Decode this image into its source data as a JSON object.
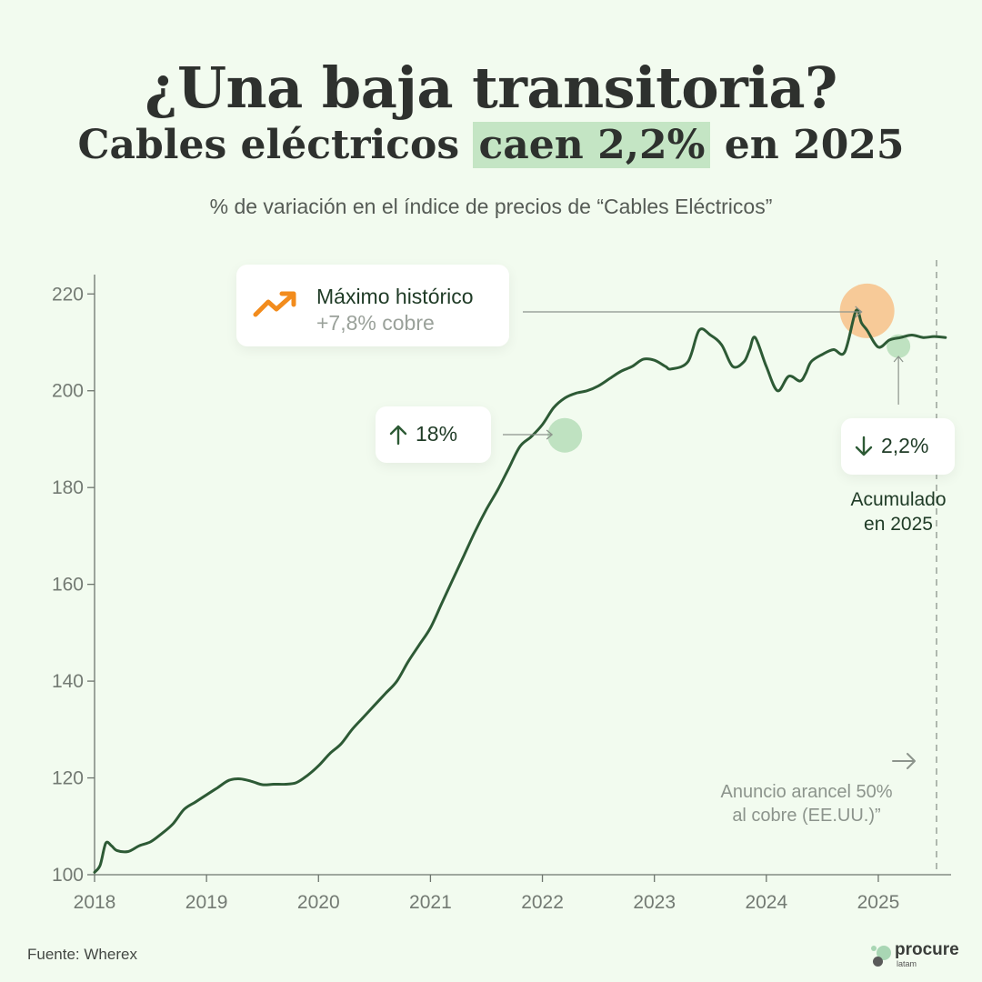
{
  "header": {
    "title": "¿Una baja transitoria?",
    "subtitle_pre": "Cables eléctricos ",
    "subtitle_highlight": "caen 2,2%",
    "subtitle_post": " en 2025",
    "description": "% de variación en el índice de precios de “Cables Eléctricos”"
  },
  "annotations": {
    "max_label": "Máximo histórico",
    "max_sub": "+7,8% cobre",
    "up_label": "18%",
    "down_label": "2,2%",
    "acumulado_line1": "Acumulado",
    "acumulado_line2": "en 2025",
    "arancel_line1": "Anuncio arancel 50%",
    "arancel_line2": "al cobre (EE.UU.)”"
  },
  "footer": {
    "source": "Fuente: Wherex",
    "logo_word": "procure",
    "logo_small": "latam"
  },
  "colors": {
    "line": "#2d5a35",
    "background": "#f2fbef",
    "highlight": "#c4e5c4",
    "max_marker": "#f7c48e",
    "green_marker": "#b9dfbb",
    "arrow_orange": "#f28c1d"
  },
  "chart_data": {
    "type": "line",
    "xlabel": "",
    "ylabel": "",
    "ylim": [
      100,
      224
    ],
    "xlim": [
      2018.0,
      2025.65
    ],
    "yticks": [
      100,
      120,
      140,
      160,
      180,
      200,
      220
    ],
    "xticks": [
      "2018",
      "2019",
      "2020",
      "2021",
      "2022",
      "2023",
      "2024",
      "2025"
    ],
    "grid": false,
    "series": [
      {
        "x": [
          2018.0,
          2018.05,
          2018.1,
          2018.15,
          2018.2,
          2018.3,
          2018.4,
          2018.5,
          2018.6,
          2018.7,
          2018.8,
          2018.9,
          2019.0,
          2019.1,
          2019.2,
          2019.3,
          2019.4,
          2019.5,
          2019.6,
          2019.7,
          2019.8,
          2019.9,
          2020.0,
          2020.1,
          2020.2,
          2020.3,
          2020.4,
          2020.5,
          2020.6,
          2020.7,
          2020.8,
          2020.9,
          2021.0,
          2021.1,
          2021.2,
          2021.3,
          2021.4,
          2021.5,
          2021.6,
          2021.7,
          2021.8,
          2021.9,
          2022.0,
          2022.1,
          2022.2,
          2022.3,
          2022.4,
          2022.5,
          2022.6,
          2022.7,
          2022.8,
          2022.9,
          2023.0,
          2023.1,
          2023.15,
          2023.3,
          2023.4,
          2023.5,
          2023.6,
          2023.7,
          2023.8,
          2023.85,
          2023.9,
          2024.0,
          2024.1,
          2024.2,
          2024.3,
          2024.35,
          2024.4,
          2024.5,
          2024.6,
          2024.7,
          2024.8,
          2024.85,
          2024.9,
          2025.0,
          2025.1,
          2025.2,
          2025.3,
          2025.4,
          2025.5,
          2025.6
        ],
        "y": [
          100.5,
          102,
          106.5,
          106,
          105,
          104.8,
          106,
          106.8,
          108.5,
          110.5,
          113.5,
          115,
          116.5,
          118,
          119.5,
          119.8,
          119.3,
          118.6,
          118.7,
          118.7,
          119,
          120.5,
          122.5,
          125,
          127,
          130,
          132.5,
          135,
          137.5,
          140,
          144,
          147.5,
          151,
          156,
          161,
          166,
          171,
          175.5,
          179.5,
          184,
          188.5,
          190.5,
          193,
          196.5,
          198.5,
          199.5,
          200,
          201,
          202.5,
          204,
          205,
          206.5,
          206.3,
          205,
          204.5,
          206,
          212.5,
          211.5,
          209.5,
          205,
          206,
          208.5,
          211,
          205,
          200,
          203,
          202,
          203.5,
          206,
          207.5,
          208.5,
          208,
          216.5,
          214,
          212.5,
          209,
          210.5,
          211,
          211.5,
          211,
          211.2,
          211
        ]
      }
    ]
  }
}
